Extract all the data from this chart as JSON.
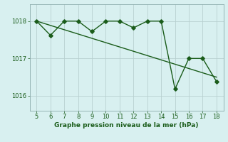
{
  "x": [
    5,
    6,
    7,
    8,
    9,
    10,
    11,
    12,
    13,
    14,
    15,
    16,
    17,
    18
  ],
  "y": [
    1018.0,
    1017.62,
    1018.0,
    1018.0,
    1017.72,
    1018.0,
    1018.0,
    1017.82,
    1018.0,
    1018.0,
    1016.18,
    1017.0,
    1017.0,
    1016.38
  ],
  "trend_x": [
    5,
    18
  ],
  "trend_y": [
    1018.0,
    1016.5
  ],
  "line_color": "#1a5c1a",
  "bg_color": "#d8f0f0",
  "xlabel": "Graphe pression niveau de la mer (hPa)",
  "ylim": [
    1015.6,
    1018.45
  ],
  "yticks": [
    1016,
    1017,
    1018
  ],
  "xlim": [
    4.5,
    18.5
  ],
  "xticks": [
    5,
    6,
    7,
    8,
    9,
    10,
    11,
    12,
    13,
    14,
    15,
    16,
    17,
    18
  ],
  "grid_color": "#b8d0d0",
  "marker_size": 2.8,
  "line_width": 1.0,
  "spine_color": "#8aaaaa"
}
